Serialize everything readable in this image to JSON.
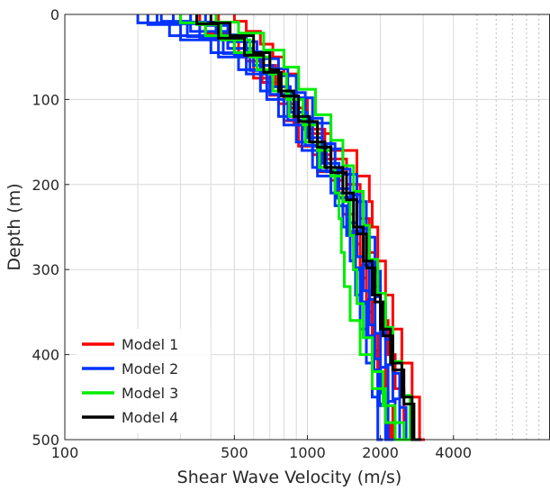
{
  "chart_data": {
    "type": "line",
    "title": "",
    "xlabel": "Shear Wave Velocity (m/s)",
    "ylabel": "Depth (m)",
    "xscale": "log",
    "xlim": [
      100,
      10000
    ],
    "ylim": [
      0,
      500
    ],
    "y_inverted": true,
    "x_ticks": [
      100,
      500,
      1000,
      2000,
      4000
    ],
    "x_tick_labels": [
      "100",
      "500",
      "1000",
      "2000",
      "4000"
    ],
    "y_ticks": [
      0,
      100,
      200,
      300,
      400,
      500
    ],
    "y_tick_labels": [
      "0",
      "100",
      "200",
      "300",
      "400",
      "500"
    ],
    "grid": true,
    "legend_position": "bottom-left",
    "series": [
      {
        "name": "Model 1",
        "color": "#ff0000",
        "profiles": [
          {
            "depth": [
              0,
              8,
              20,
              35,
              50,
              70,
              100,
              140,
              160,
              190,
              220,
              250,
              290,
              330,
              370,
              410,
              450,
              500
            ],
            "velocity": [
              500,
              560,
              640,
              720,
              800,
              900,
              1000,
              1250,
              1600,
              1800,
              1850,
              1950,
              2100,
              2250,
              2450,
              2700,
              2900,
              3050
            ]
          },
          {
            "depth": [
              0,
              10,
              25,
              45,
              60,
              85,
              110,
              135,
              170,
              200,
              240,
              280,
              320,
              360,
              400,
              440,
              500
            ],
            "velocity": [
              430,
              480,
              560,
              620,
              740,
              840,
              960,
              1180,
              1450,
              1650,
              1800,
              1900,
              2000,
              2150,
              2300,
              2500,
              2650
            ]
          },
          {
            "depth": [
              0,
              12,
              30,
              50,
              75,
              95,
              125,
              155,
              185,
              215,
              255,
              295,
              335,
              375,
              415,
              460,
              500
            ],
            "velocity": [
              360,
              420,
              520,
              600,
              700,
              800,
              920,
              1100,
              1350,
              1500,
              1650,
              1750,
              1850,
              1950,
              2100,
              2250,
              2400
            ]
          },
          {
            "depth": [
              0,
              9,
              22,
              40,
              55,
              80,
              105,
              130,
              165,
              195,
              235,
              270,
              310,
              350,
              395,
              435,
              480,
              500
            ],
            "velocity": [
              300,
              380,
              470,
              560,
              650,
              760,
              880,
              1050,
              1250,
              1400,
              1550,
              1650,
              1750,
              1850,
              1950,
              2100,
              2200,
              2300
            ]
          }
        ]
      },
      {
        "name": "Model 2",
        "color": "#0033ff",
        "profiles": [
          {
            "depth": [
              0,
              10,
              25,
              45,
              65,
              90,
              120,
              150,
              180,
              210,
              250,
              290,
              330,
              370,
              410,
              450,
              500
            ],
            "velocity": [
              200,
              270,
              400,
              520,
              640,
              760,
              900,
              1050,
              1250,
              1400,
              1500,
              1580,
              1650,
              1750,
              1850,
              1950,
              2050
            ]
          },
          {
            "depth": [
              0,
              12,
              30,
              50,
              70,
              100,
              130,
              160,
              190,
              225,
              260,
              300,
              340,
              380,
              420,
              460,
              500
            ],
            "velocity": [
              220,
              300,
              430,
              560,
              680,
              800,
              950,
              1100,
              1300,
              1450,
              1550,
              1650,
              1750,
              1850,
              1950,
              2100,
              2200
            ]
          },
          {
            "depth": [
              0,
              8,
              20,
              40,
              60,
              85,
              115,
              145,
              175,
              205,
              245,
              285,
              325,
              365,
              405,
              445,
              500
            ],
            "velocity": [
              250,
              330,
              470,
              600,
              720,
              850,
              1000,
              1150,
              1350,
              1500,
              1600,
              1700,
              1800,
              1900,
              2000,
              2150,
              2300
            ]
          },
          {
            "depth": [
              0,
              11,
              28,
              48,
              68,
              95,
              125,
              155,
              185,
              215,
              255,
              295,
              335,
              375,
              415,
              455,
              500
            ],
            "velocity": [
              280,
              360,
              500,
              640,
              760,
              900,
              1050,
              1200,
              1400,
              1550,
              1700,
              1800,
              1900,
              2000,
              2150,
              2300,
              2450
            ]
          },
          {
            "depth": [
              0,
              9,
              24,
              44,
              64,
              92,
              122,
              152,
              182,
              212,
              252,
              292,
              332,
              372,
              412,
              452,
              500
            ],
            "velocity": [
              330,
              420,
              560,
              700,
              830,
              980,
              1150,
              1300,
              1500,
              1650,
              1800,
              1900,
              2000,
              2100,
              2250,
              2400,
              2600
            ]
          },
          {
            "depth": [
              0,
              13,
              32,
              52,
              72,
              98,
              128,
              158,
              188,
              220,
              262,
              302,
              342,
              382,
              422,
              462,
              500
            ],
            "velocity": [
              380,
              470,
              620,
              760,
              900,
              1050,
              1250,
              1400,
              1600,
              1750,
              1900,
              2000,
              2100,
              2250,
              2400,
              2550,
              2700
            ]
          },
          {
            "depth": [
              0,
              10,
              26,
              46,
              66,
              94,
              124,
              154,
              184,
              216,
              258,
              298,
              338,
              378,
              418,
              458,
              500
            ],
            "velocity": [
              240,
              320,
              450,
              580,
              700,
              830,
              980,
              1130,
              1330,
              1480,
              1580,
              1680,
              1780,
              1880,
              1980,
              2120,
              2280
            ]
          }
        ]
      },
      {
        "name": "Model 3",
        "color": "#00ee00",
        "profiles": [
          {
            "depth": [
              0,
              10,
              25,
              45,
              65,
              90,
              120,
              150,
              180,
              210,
              240,
              280,
              320,
              360,
              400,
              440,
              480,
              500
            ],
            "velocity": [
              300,
              380,
              500,
              620,
              720,
              840,
              980,
              1120,
              1300,
              1350,
              1380,
              1420,
              1500,
              1650,
              1850,
              2100,
              2500,
              2800
            ]
          },
          {
            "depth": [
              0,
              12,
              30,
              50,
              70,
              100,
              130,
              160,
              190,
              220,
              260,
              300,
              340,
              380,
              420,
              460,
              500
            ],
            "velocity": [
              350,
              440,
              580,
              700,
              820,
              960,
              1100,
              1250,
              1400,
              1500,
              1550,
              1600,
              1700,
              1850,
              2050,
              2300,
              2600
            ]
          },
          {
            "depth": [
              0,
              9,
              22,
              42,
              62,
              88,
              118,
              148,
              178,
              208,
              248,
              288,
              328,
              368,
              408,
              448,
              500
            ],
            "velocity": [
              420,
              520,
              660,
              800,
              920,
              1080,
              1250,
              1400,
              1550,
              1700,
              1800,
              1950,
              2100,
              2250,
              2450,
              2650,
              2900
            ]
          }
        ]
      },
      {
        "name": "Model 4",
        "color": "#000000",
        "profiles": [
          {
            "depth": [
              0,
              10,
              25,
              45,
              65,
              90,
              120,
              150,
              180,
              210,
              250,
              290,
              330,
              370,
              410,
              450,
              500
            ],
            "velocity": [
              400,
              480,
              600,
              700,
              760,
              880,
              1020,
              1180,
              1400,
              1550,
              1700,
              1850,
              2000,
              2200,
              2450,
              2700,
              2900
            ]
          },
          {
            "depth": [
              0,
              11,
              28,
              48,
              68,
              96,
              126,
              156,
              186,
              218,
              258,
              298,
              338,
              378,
              418,
              458,
              500
            ],
            "velocity": [
              350,
              430,
              550,
              660,
              780,
              920,
              1100,
              1250,
              1450,
              1600,
              1750,
              1900,
              2050,
              2250,
              2500,
              2750,
              2950
            ]
          }
        ]
      }
    ]
  }
}
